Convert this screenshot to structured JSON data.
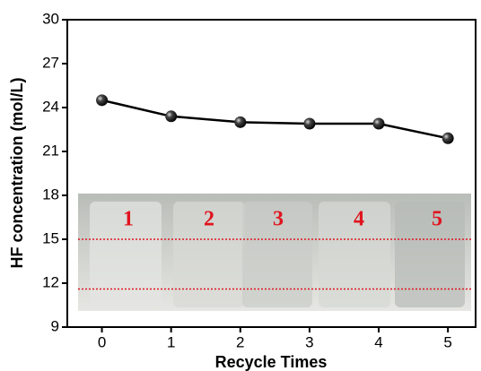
{
  "chart_data": {
    "type": "line",
    "x_label": "Recycle Times",
    "y_label": "HF concentration (mol/L)",
    "x": [
      0,
      1,
      2,
      3,
      4,
      5
    ],
    "series": [
      {
        "color": "#000000",
        "values": [
          24.5,
          23.4,
          23.0,
          22.9,
          22.9,
          21.9
        ]
      }
    ],
    "xlim": [
      -0.5,
      5.4
    ],
    "xticks": [
      0,
      1,
      2,
      3,
      4,
      5
    ],
    "ylim": [
      9,
      30
    ],
    "yticks": [
      9,
      12,
      15,
      18,
      21,
      24,
      27,
      30
    ],
    "hlines": [
      15,
      11.6
    ],
    "hline_color": "#e0141e",
    "inset_labels": [
      "1",
      "2",
      "3",
      "4",
      "5"
    ]
  }
}
